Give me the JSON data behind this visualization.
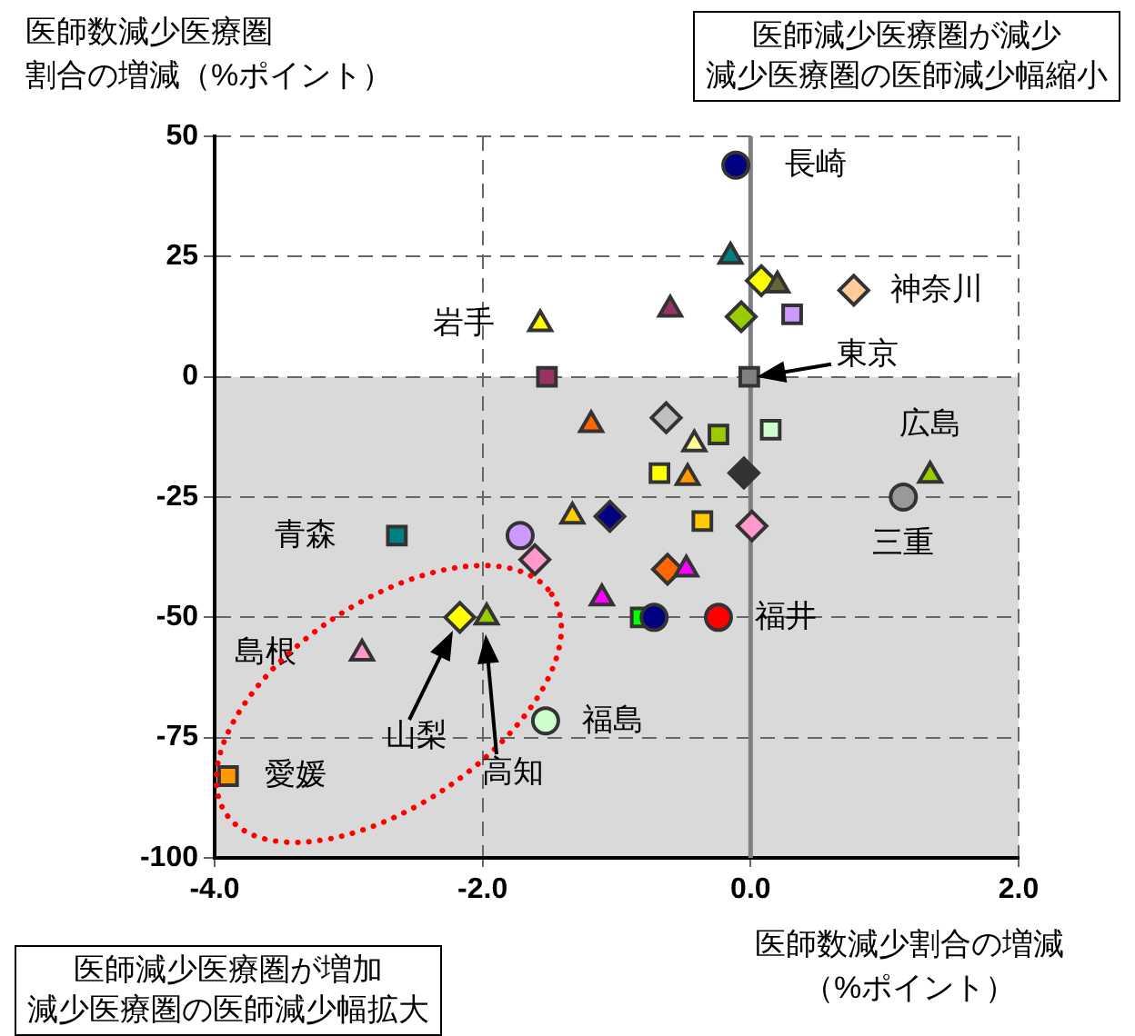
{
  "chart_data": {
    "type": "scatter",
    "ylabel": "医師数減少医療圏割合の増減（%ポイント）",
    "xlabel": "医師数減少割合の増減（%ポイント）",
    "xlim": [
      -4,
      2
    ],
    "xticks": [
      {
        "value": -4,
        "label": "-4.0"
      },
      {
        "value": -2,
        "label": "-2.0"
      },
      {
        "value": 0,
        "label": "0.0"
      },
      {
        "value": 2,
        "label": "2.0"
      }
    ],
    "ylim": [
      -100,
      50
    ],
    "yticks": [
      -100,
      -75,
      -50,
      -25,
      0,
      25,
      50
    ],
    "grid": true,
    "bands": [
      {
        "axis": "y",
        "from": -100,
        "to": 0,
        "color": "#d9d9d9"
      }
    ],
    "ref_lines": [
      {
        "axis": "x",
        "value": 0,
        "color": "#808080"
      }
    ],
    "series": [
      {
        "marker": "circle",
        "x": [
          -0.11,
          1.14,
          -1.72,
          -1.53,
          -0.72,
          -0.24
        ],
        "values": [
          44,
          -25,
          -33,
          -71.5,
          -50,
          -50
        ],
        "colors": [
          "#000080",
          "#999999",
          "#cc99ff",
          "#ccffcc",
          "#000080",
          "#ff0000"
        ]
      },
      {
        "marker": "square",
        "x": [
          -1.52,
          0.31,
          -0.01,
          0.15,
          -0.24,
          -0.68,
          -2.64,
          -3.9,
          -0.36,
          -0.82
        ],
        "values": [
          0,
          13,
          0,
          -11,
          -12,
          -20,
          -33,
          -83,
          -30,
          -50
        ],
        "colors": [
          "#993366",
          "#cc99ff",
          "#808080",
          "#ccffcc",
          "#99cc00",
          "#ffff00",
          "#008080",
          "#ff9900",
          "#ffcc00",
          "#00ff00"
        ]
      },
      {
        "marker": "triangle",
        "x": [
          -1.57,
          -0.15,
          0.2,
          -0.6,
          -1.19,
          -0.42,
          -0.47,
          1.34,
          -1.33,
          -1.97,
          -2.9,
          -0.48,
          -1.11
        ],
        "values": [
          11,
          25,
          19,
          14,
          -10,
          -14,
          -21,
          -20.5,
          -29,
          -50,
          -57.5,
          -40,
          -46
        ],
        "colors": [
          "#ffff00",
          "#008080",
          "#666633",
          "#993366",
          "#ff6600",
          "#ffff99",
          "#ff9900",
          "#99cc00",
          "#ffcc00",
          "#99cc00",
          "#ff99cc",
          "#ff00ff",
          "#ff00ff"
        ]
      },
      {
        "marker": "diamond",
        "x": [
          0.08,
          0.77,
          -0.07,
          -0.63,
          -0.05,
          -1.61,
          -2.17,
          -1.05,
          0.01,
          -0.62
        ],
        "values": [
          20,
          18,
          12.5,
          -8.5,
          -20,
          -38,
          -50,
          -29,
          -31,
          -40
        ],
        "colors": [
          "#ffff00",
          "#ffcc99",
          "#99cc00",
          "#c0c0c0",
          "#333333",
          "#ff99cc",
          "#ffff00",
          "#000080",
          "#ff99cc",
          "#ff6600"
        ]
      }
    ],
    "annotations": [
      "医師減少医療圏が減少減少医療圏の医師減少幅縮小",
      "医師減少医療圏が増加減少医療圏の医師減少幅拡大",
      {
        "text": "長崎",
        "x": -0.11,
        "y": 44
      },
      {
        "text": "神奈川",
        "x": 0.77,
        "y": 18
      },
      {
        "text": "東京",
        "x": -0.01,
        "y": 0
      },
      {
        "text": "広島",
        "x": 1.34,
        "y": -20.5
      },
      {
        "text": "三重",
        "x": 1.14,
        "y": -25
      },
      {
        "text": "福井",
        "x": -0.24,
        "y": -50
      },
      {
        "text": "福島",
        "x": -1.53,
        "y": -71.5
      },
      {
        "text": "愛媛",
        "x": -3.9,
        "y": -83
      },
      {
        "text": "島根",
        "x": -2.9,
        "y": -57.5
      },
      {
        "text": "青森",
        "x": -2.64,
        "y": -33
      },
      {
        "text": "岩手",
        "x": -1.57,
        "y": 11
      },
      "山梨",
      "高知"
    ]
  }
}
